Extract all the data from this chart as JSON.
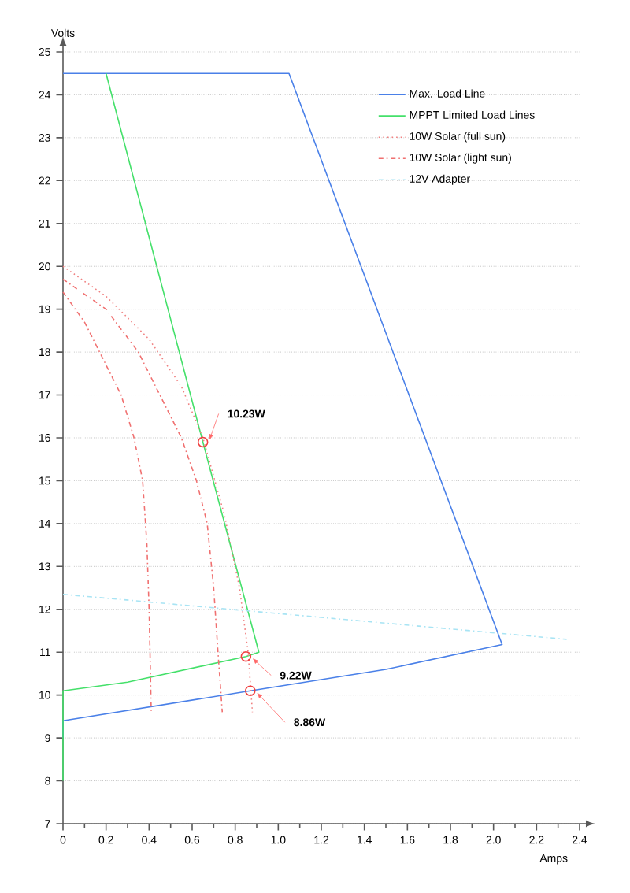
{
  "chart_data": {
    "type": "line",
    "xlabel": "Amps",
    "ylabel": "Volts",
    "xlim": [
      0,
      2.4
    ],
    "ylim": [
      7,
      25
    ],
    "xticks": [
      0,
      0.2,
      0.4,
      0.6,
      0.8,
      {
        "value": 1,
        "label": "1.0"
      },
      1.2,
      1.4,
      1.6,
      1.8,
      {
        "value": 2,
        "label": "2.0"
      },
      2.2,
      2.4
    ],
    "yticks": [
      7,
      8,
      9,
      10,
      11,
      12,
      13,
      14,
      15,
      16,
      17,
      18,
      19,
      20,
      21,
      22,
      23,
      24,
      25
    ],
    "grid": "y",
    "legend": "top right",
    "series": [
      {
        "name": "Max. Load Line",
        "color": "#4a80e8",
        "line_style": "solid",
        "x": [
          0,
          0,
          0.87,
          1.5,
          2.04,
          1.05,
          0
        ],
        "values": [
          9.0,
          9.4,
          10.1,
          10.6,
          11.18,
          24.5,
          24.5
        ]
      },
      {
        "name": "MPPT Limited Load Lines",
        "color": "#44e06a",
        "line_style": "solid",
        "x": [
          0,
          0,
          0.3,
          0.85,
          0.91,
          0.65,
          0.2
        ],
        "values": [
          8.0,
          10.1,
          10.3,
          10.9,
          11.0,
          15.9,
          24.5
        ]
      },
      {
        "name": "10W Solar (full sun)",
        "color": "#f08080",
        "line_style": "dotted",
        "x": [
          0,
          0.2,
          0.4,
          0.55,
          0.65,
          0.75,
          0.82,
          0.86,
          0.88
        ],
        "values": [
          20,
          19.3,
          18.3,
          17.2,
          16,
          14.2,
          12.5,
          11,
          9.6
        ]
      },
      {
        "name": "10W Solar (light sun)",
        "color": "#f07070",
        "line_style": "dashdotted",
        "x": [
          0,
          0.2,
          0.35,
          0.45,
          0.55,
          0.62,
          0.67,
          0.7,
          0.72,
          0.74
        ],
        "values": [
          19.7,
          19,
          18,
          17,
          16,
          15,
          14,
          12.5,
          11,
          9.6
        ]
      },
      {
        "color": "#f07070",
        "line_style": "dashdotted",
        "x": [
          0,
          0.1,
          0.2,
          0.27,
          0.33,
          0.37,
          0.39,
          0.4,
          0.41
        ],
        "values": [
          19.4,
          18.7,
          17.7,
          17,
          16,
          15,
          13.5,
          12,
          9.6
        ]
      },
      {
        "name": "12V Adapter",
        "color": "#a8e4f4",
        "line_style": "dashdotted",
        "x": [
          0,
          2.34
        ],
        "values": [
          12.35,
          11.3
        ]
      },
      {
        "type": "scatter",
        "marker": "circle",
        "color": "#f04040",
        "x": [
          0.65,
          0.85,
          0.87
        ],
        "values": [
          15.9,
          10.9,
          10.1
        ]
      }
    ],
    "annotations": [
      {
        "text": "10.23W",
        "x": 0.65,
        "y": 15.9
      },
      {
        "text": "9.22W",
        "x": 0.85,
        "y": 10.9
      },
      {
        "text": "8.86W",
        "x": 0.87,
        "y": 10.1
      }
    ]
  }
}
